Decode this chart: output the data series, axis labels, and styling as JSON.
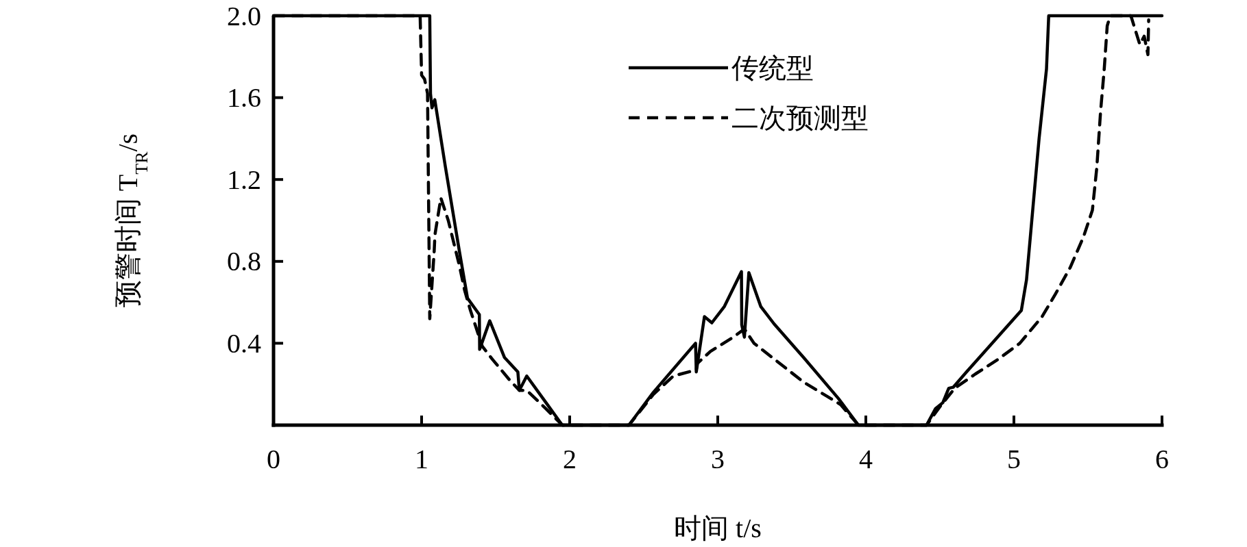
{
  "chart_data": {
    "type": "line",
    "xlabel": "时间 t/s",
    "ylabel": "预警时间 T$_{TR}$/s",
    "xlim": [
      0,
      6
    ],
    "ylim": [
      0,
      2.0
    ],
    "xticks": [
      0,
      1,
      2,
      3,
      4,
      5,
      6
    ],
    "yticks": [
      0.4,
      0.8,
      1.2,
      1.6,
      {
        "value": 2.0,
        "label": "2.0"
      }
    ],
    "grid": false,
    "legend": "top",
    "marker": "none",
    "series": [
      {
        "name": "传统型",
        "color": "#000000",
        "line_style": "solid",
        "x": [
          0,
          1.055,
          1.06,
          1.07,
          1.089,
          1.161,
          1.255,
          1.31,
          1.39,
          1.392,
          1.46,
          1.56,
          1.65,
          1.66,
          1.71,
          1.84,
          1.95,
          2.4,
          2.565,
          2.85,
          2.855,
          2.91,
          2.96,
          3.045,
          3.16,
          3.162,
          3.18,
          3.21,
          3.29,
          3.38,
          3.58,
          3.815,
          3.95,
          4.41,
          4.47,
          4.52,
          4.56,
          4.59,
          4.68,
          5.05,
          5.085,
          5.17,
          5.22,
          5.235,
          6.0
        ],
        "values": [
          2.0,
          2.0,
          1.62,
          1.55,
          1.59,
          1.26,
          0.85,
          0.62,
          0.54,
          0.37,
          0.51,
          0.33,
          0.26,
          0.17,
          0.24,
          0.11,
          0,
          0,
          0.16,
          0.4,
          0.26,
          0.53,
          0.5,
          0.58,
          0.75,
          0.49,
          0.43,
          0.745,
          0.58,
          0.495,
          0.33,
          0.13,
          0,
          0,
          0.08,
          0.11,
          0.18,
          0.185,
          0.26,
          0.56,
          0.71,
          1.4,
          1.74,
          2.0,
          2.0
        ]
      },
      {
        "name": "二次预测型",
        "color": "#000000",
        "line_style": "dashed",
        "x": [
          0,
          0.99,
          1.0,
          1.02,
          1.04,
          1.055,
          1.085,
          1.09,
          1.13,
          1.18,
          1.255,
          1.29,
          1.33,
          1.38,
          1.41,
          1.48,
          1.595,
          1.66,
          1.71,
          1.84,
          1.95,
          2.4,
          2.565,
          2.7,
          2.855,
          2.86,
          2.95,
          3.105,
          3.18,
          3.245,
          3.58,
          3.74,
          3.83,
          3.95,
          4.41,
          4.5,
          4.6,
          4.74,
          4.89,
          5.04,
          5.19,
          5.28,
          5.38,
          5.47,
          5.53,
          5.56,
          5.585,
          5.61,
          5.63,
          5.65,
          5.79,
          5.85,
          5.88,
          5.905,
          5.91
        ],
        "values": [
          2.0,
          2.0,
          1.71,
          1.69,
          1.62,
          0.52,
          0.85,
          0.93,
          1.11,
          1.0,
          0.78,
          0.66,
          0.56,
          0.45,
          0.385,
          0.32,
          0.22,
          0.17,
          0.17,
          0.08,
          0,
          0,
          0.15,
          0.24,
          0.27,
          0.3,
          0.36,
          0.43,
          0.47,
          0.4,
          0.21,
          0.14,
          0.1,
          0,
          0,
          0.09,
          0.18,
          0.25,
          0.32,
          0.4,
          0.53,
          0.64,
          0.77,
          0.92,
          1.05,
          1.26,
          1.53,
          1.74,
          1.95,
          2.0,
          2.0,
          1.86,
          1.9,
          1.81,
          1.98
        ]
      }
    ]
  }
}
